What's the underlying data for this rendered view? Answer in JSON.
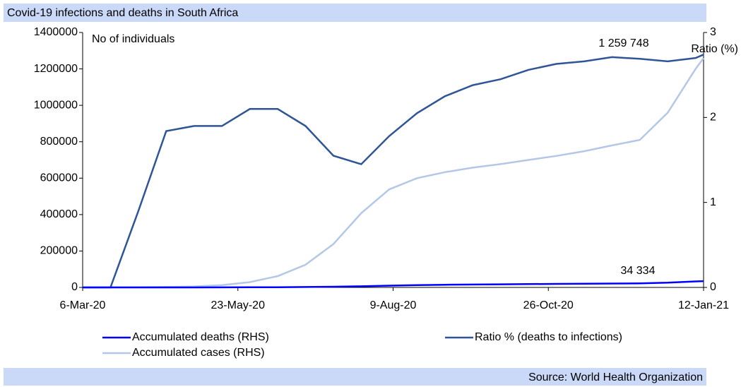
{
  "chart_data": {
    "type": "line",
    "title": "Covid-19 infections and deaths in South Africa",
    "source": "Source: World Health Organization",
    "y_label": "No of individuals",
    "y2_label": "Ratio (%)",
    "annotations": [
      "1 259 748",
      "34 334"
    ],
    "x": [
      "2020-03-06",
      "2020-03-20",
      "2020-04-03",
      "2020-04-17",
      "2020-05-01",
      "2020-05-15",
      "2020-05-29",
      "2020-06-12",
      "2020-06-26",
      "2020-07-10",
      "2020-07-24",
      "2020-08-07",
      "2020-08-21",
      "2020-09-04",
      "2020-09-18",
      "2020-10-02",
      "2020-10-16",
      "2020-10-30",
      "2020-11-13",
      "2020-11-27",
      "2020-12-11",
      "2020-12-25",
      "2021-01-08",
      "2021-01-12"
    ],
    "series": [
      {
        "name": "Accumulated deaths (RHS)",
        "color": "#0000ff",
        "axis": "y",
        "values": [
          0,
          0,
          18,
          50,
          103,
          247,
          611,
          1284,
          2340,
          3720,
          6093,
          9604,
          12264,
          14889,
          15953,
          16976,
          18309,
          19276,
          20206,
          21201,
          22574,
          26000,
          33000,
          34334
        ]
      },
      {
        "name": "Ratio % (deaths to infections)",
        "color": "#2f5597",
        "axis": "y2",
        "values": [
          0,
          0,
          0.9,
          1.84,
          1.9,
          1.9,
          2.1,
          2.1,
          1.9,
          1.55,
          1.45,
          1.78,
          2.05,
          2.25,
          2.38,
          2.45,
          2.56,
          2.63,
          2.66,
          2.71,
          2.69,
          2.66,
          2.7,
          2.74
        ]
      },
      {
        "name": "Accumulated cases  (RHS)",
        "color": "#b4c7e7",
        "axis": "y",
        "values": [
          0,
          200,
          1500,
          2800,
          5600,
          12700,
          29000,
          61900,
          124600,
          238300,
          408000,
          538200,
          599900,
          633000,
          657600,
          677000,
          700000,
          722000,
          748000,
          780000,
          810000,
          960000,
          1200000,
          1259748
        ]
      }
    ],
    "xlim": [
      "2020-03-06",
      "2021-01-12"
    ],
    "xticks": [
      {
        "value": "2020-03-06",
        "label": "6-Mar-20"
      },
      {
        "value": "2020-05-23",
        "label": "23-May-20"
      },
      {
        "value": "2020-08-09",
        "label": "9-Aug-20"
      },
      {
        "value": "2020-10-26",
        "label": "26-Oct-20"
      },
      {
        "value": "2021-01-12",
        "label": "12-Jan-21"
      }
    ],
    "ylim": [
      0,
      1400000
    ],
    "yticks": [
      0,
      200000,
      400000,
      600000,
      800000,
      1000000,
      1200000,
      1400000
    ],
    "y2lim": [
      0,
      3
    ],
    "y2ticks": [
      0,
      1,
      2,
      3
    ]
  }
}
